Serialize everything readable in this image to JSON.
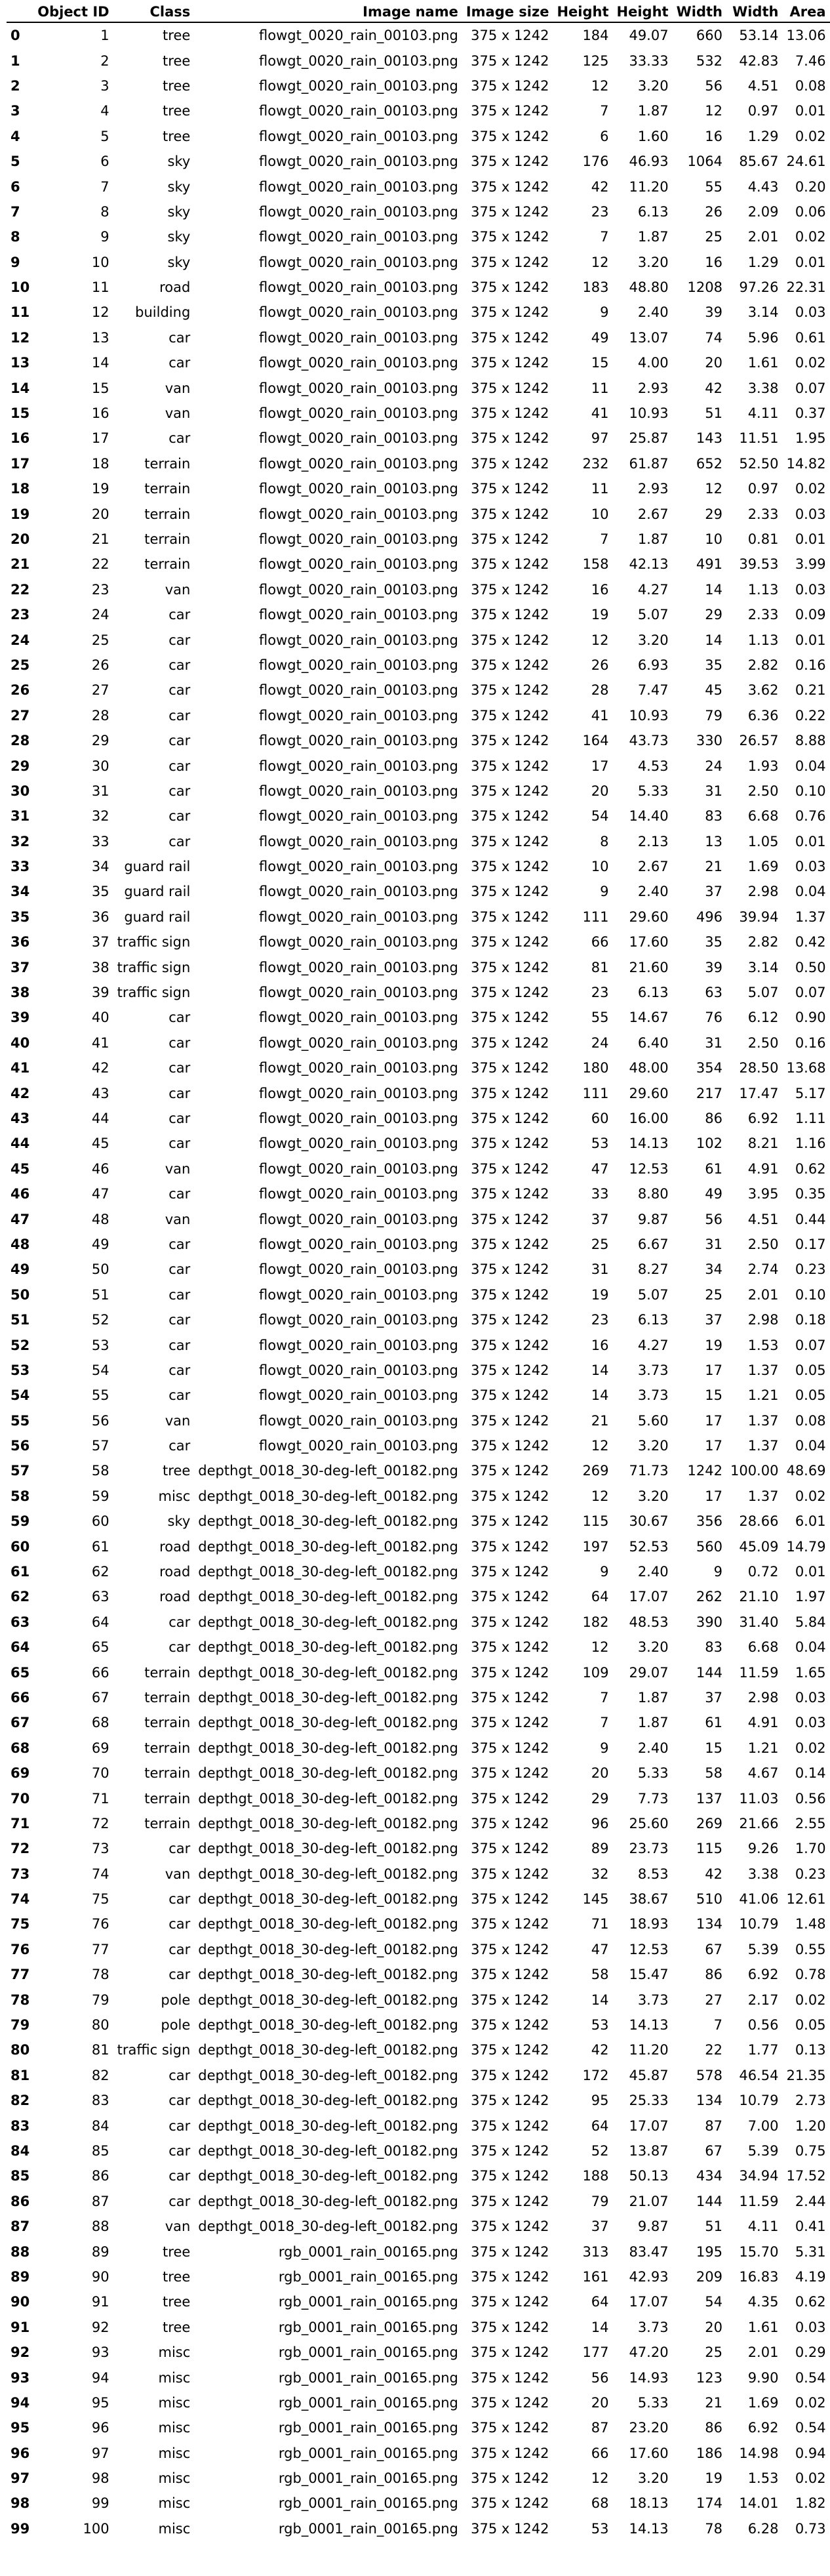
{
  "columns": [
    "",
    "Object ID",
    "Class",
    "Image name",
    "Image size",
    "Height",
    "Height",
    "Width",
    "Width",
    "Area"
  ],
  "rows": [
    [
      0,
      1,
      "tree",
      "flowgt_0020_rain_00103.png",
      "375 x 1242",
      184,
      "49.07",
      660,
      "53.14",
      "13.06"
    ],
    [
      1,
      2,
      "tree",
      "flowgt_0020_rain_00103.png",
      "375 x 1242",
      125,
      "33.33",
      532,
      "42.83",
      "7.46"
    ],
    [
      2,
      3,
      "tree",
      "flowgt_0020_rain_00103.png",
      "375 x 1242",
      12,
      "3.20",
      56,
      "4.51",
      "0.08"
    ],
    [
      3,
      4,
      "tree",
      "flowgt_0020_rain_00103.png",
      "375 x 1242",
      7,
      "1.87",
      12,
      "0.97",
      "0.01"
    ],
    [
      4,
      5,
      "tree",
      "flowgt_0020_rain_00103.png",
      "375 x 1242",
      6,
      "1.60",
      16,
      "1.29",
      "0.02"
    ],
    [
      5,
      6,
      "sky",
      "flowgt_0020_rain_00103.png",
      "375 x 1242",
      176,
      "46.93",
      1064,
      "85.67",
      "24.61"
    ],
    [
      6,
      7,
      "sky",
      "flowgt_0020_rain_00103.png",
      "375 x 1242",
      42,
      "11.20",
      55,
      "4.43",
      "0.20"
    ],
    [
      7,
      8,
      "sky",
      "flowgt_0020_rain_00103.png",
      "375 x 1242",
      23,
      "6.13",
      26,
      "2.09",
      "0.06"
    ],
    [
      8,
      9,
      "sky",
      "flowgt_0020_rain_00103.png",
      "375 x 1242",
      7,
      "1.87",
      25,
      "2.01",
      "0.02"
    ],
    [
      9,
      10,
      "sky",
      "flowgt_0020_rain_00103.png",
      "375 x 1242",
      12,
      "3.20",
      16,
      "1.29",
      "0.01"
    ],
    [
      10,
      11,
      "road",
      "flowgt_0020_rain_00103.png",
      "375 x 1242",
      183,
      "48.80",
      1208,
      "97.26",
      "22.31"
    ],
    [
      11,
      12,
      "building",
      "flowgt_0020_rain_00103.png",
      "375 x 1242",
      9,
      "2.40",
      39,
      "3.14",
      "0.03"
    ],
    [
      12,
      13,
      "car",
      "flowgt_0020_rain_00103.png",
      "375 x 1242",
      49,
      "13.07",
      74,
      "5.96",
      "0.61"
    ],
    [
      13,
      14,
      "car",
      "flowgt_0020_rain_00103.png",
      "375 x 1242",
      15,
      "4.00",
      20,
      "1.61",
      "0.02"
    ],
    [
      14,
      15,
      "van",
      "flowgt_0020_rain_00103.png",
      "375 x 1242",
      11,
      "2.93",
      42,
      "3.38",
      "0.07"
    ],
    [
      15,
      16,
      "van",
      "flowgt_0020_rain_00103.png",
      "375 x 1242",
      41,
      "10.93",
      51,
      "4.11",
      "0.37"
    ],
    [
      16,
      17,
      "car",
      "flowgt_0020_rain_00103.png",
      "375 x 1242",
      97,
      "25.87",
      143,
      "11.51",
      "1.95"
    ],
    [
      17,
      18,
      "terrain",
      "flowgt_0020_rain_00103.png",
      "375 x 1242",
      232,
      "61.87",
      652,
      "52.50",
      "14.82"
    ],
    [
      18,
      19,
      "terrain",
      "flowgt_0020_rain_00103.png",
      "375 x 1242",
      11,
      "2.93",
      12,
      "0.97",
      "0.02"
    ],
    [
      19,
      20,
      "terrain",
      "flowgt_0020_rain_00103.png",
      "375 x 1242",
      10,
      "2.67",
      29,
      "2.33",
      "0.03"
    ],
    [
      20,
      21,
      "terrain",
      "flowgt_0020_rain_00103.png",
      "375 x 1242",
      7,
      "1.87",
      10,
      "0.81",
      "0.01"
    ],
    [
      21,
      22,
      "terrain",
      "flowgt_0020_rain_00103.png",
      "375 x 1242",
      158,
      "42.13",
      491,
      "39.53",
      "3.99"
    ],
    [
      22,
      23,
      "van",
      "flowgt_0020_rain_00103.png",
      "375 x 1242",
      16,
      "4.27",
      14,
      "1.13",
      "0.03"
    ],
    [
      23,
      24,
      "car",
      "flowgt_0020_rain_00103.png",
      "375 x 1242",
      19,
      "5.07",
      29,
      "2.33",
      "0.09"
    ],
    [
      24,
      25,
      "car",
      "flowgt_0020_rain_00103.png",
      "375 x 1242",
      12,
      "3.20",
      14,
      "1.13",
      "0.01"
    ],
    [
      25,
      26,
      "car",
      "flowgt_0020_rain_00103.png",
      "375 x 1242",
      26,
      "6.93",
      35,
      "2.82",
      "0.16"
    ],
    [
      26,
      27,
      "car",
      "flowgt_0020_rain_00103.png",
      "375 x 1242",
      28,
      "7.47",
      45,
      "3.62",
      "0.21"
    ],
    [
      27,
      28,
      "car",
      "flowgt_0020_rain_00103.png",
      "375 x 1242",
      41,
      "10.93",
      79,
      "6.36",
      "0.22"
    ],
    [
      28,
      29,
      "car",
      "flowgt_0020_rain_00103.png",
      "375 x 1242",
      164,
      "43.73",
      330,
      "26.57",
      "8.88"
    ],
    [
      29,
      30,
      "car",
      "flowgt_0020_rain_00103.png",
      "375 x 1242",
      17,
      "4.53",
      24,
      "1.93",
      "0.04"
    ],
    [
      30,
      31,
      "car",
      "flowgt_0020_rain_00103.png",
      "375 x 1242",
      20,
      "5.33",
      31,
      "2.50",
      "0.10"
    ],
    [
      31,
      32,
      "car",
      "flowgt_0020_rain_00103.png",
      "375 x 1242",
      54,
      "14.40",
      83,
      "6.68",
      "0.76"
    ],
    [
      32,
      33,
      "car",
      "flowgt_0020_rain_00103.png",
      "375 x 1242",
      8,
      "2.13",
      13,
      "1.05",
      "0.01"
    ],
    [
      33,
      34,
      "guard rail",
      "flowgt_0020_rain_00103.png",
      "375 x 1242",
      10,
      "2.67",
      21,
      "1.69",
      "0.03"
    ],
    [
      34,
      35,
      "guard rail",
      "flowgt_0020_rain_00103.png",
      "375 x 1242",
      9,
      "2.40",
      37,
      "2.98",
      "0.04"
    ],
    [
      35,
      36,
      "guard rail",
      "flowgt_0020_rain_00103.png",
      "375 x 1242",
      111,
      "29.60",
      496,
      "39.94",
      "1.37"
    ],
    [
      36,
      37,
      "traffic sign",
      "flowgt_0020_rain_00103.png",
      "375 x 1242",
      66,
      "17.60",
      35,
      "2.82",
      "0.42"
    ],
    [
      37,
      38,
      "traffic sign",
      "flowgt_0020_rain_00103.png",
      "375 x 1242",
      81,
      "21.60",
      39,
      "3.14",
      "0.50"
    ],
    [
      38,
      39,
      "traffic sign",
      "flowgt_0020_rain_00103.png",
      "375 x 1242",
      23,
      "6.13",
      63,
      "5.07",
      "0.07"
    ],
    [
      39,
      40,
      "car",
      "flowgt_0020_rain_00103.png",
      "375 x 1242",
      55,
      "14.67",
      76,
      "6.12",
      "0.90"
    ],
    [
      40,
      41,
      "car",
      "flowgt_0020_rain_00103.png",
      "375 x 1242",
      24,
      "6.40",
      31,
      "2.50",
      "0.16"
    ],
    [
      41,
      42,
      "car",
      "flowgt_0020_rain_00103.png",
      "375 x 1242",
      180,
      "48.00",
      354,
      "28.50",
      "13.68"
    ],
    [
      42,
      43,
      "car",
      "flowgt_0020_rain_00103.png",
      "375 x 1242",
      111,
      "29.60",
      217,
      "17.47",
      "5.17"
    ],
    [
      43,
      44,
      "car",
      "flowgt_0020_rain_00103.png",
      "375 x 1242",
      60,
      "16.00",
      86,
      "6.92",
      "1.11"
    ],
    [
      44,
      45,
      "car",
      "flowgt_0020_rain_00103.png",
      "375 x 1242",
      53,
      "14.13",
      102,
      "8.21",
      "1.16"
    ],
    [
      45,
      46,
      "van",
      "flowgt_0020_rain_00103.png",
      "375 x 1242",
      47,
      "12.53",
      61,
      "4.91",
      "0.62"
    ],
    [
      46,
      47,
      "car",
      "flowgt_0020_rain_00103.png",
      "375 x 1242",
      33,
      "8.80",
      49,
      "3.95",
      "0.35"
    ],
    [
      47,
      48,
      "van",
      "flowgt_0020_rain_00103.png",
      "375 x 1242",
      37,
      "9.87",
      56,
      "4.51",
      "0.44"
    ],
    [
      48,
      49,
      "car",
      "flowgt_0020_rain_00103.png",
      "375 x 1242",
      25,
      "6.67",
      31,
      "2.50",
      "0.17"
    ],
    [
      49,
      50,
      "car",
      "flowgt_0020_rain_00103.png",
      "375 x 1242",
      31,
      "8.27",
      34,
      "2.74",
      "0.23"
    ],
    [
      50,
      51,
      "car",
      "flowgt_0020_rain_00103.png",
      "375 x 1242",
      19,
      "5.07",
      25,
      "2.01",
      "0.10"
    ],
    [
      51,
      52,
      "car",
      "flowgt_0020_rain_00103.png",
      "375 x 1242",
      23,
      "6.13",
      37,
      "2.98",
      "0.18"
    ],
    [
      52,
      53,
      "car",
      "flowgt_0020_rain_00103.png",
      "375 x 1242",
      16,
      "4.27",
      19,
      "1.53",
      "0.07"
    ],
    [
      53,
      54,
      "car",
      "flowgt_0020_rain_00103.png",
      "375 x 1242",
      14,
      "3.73",
      17,
      "1.37",
      "0.05"
    ],
    [
      54,
      55,
      "car",
      "flowgt_0020_rain_00103.png",
      "375 x 1242",
      14,
      "3.73",
      15,
      "1.21",
      "0.05"
    ],
    [
      55,
      56,
      "van",
      "flowgt_0020_rain_00103.png",
      "375 x 1242",
      21,
      "5.60",
      17,
      "1.37",
      "0.08"
    ],
    [
      56,
      57,
      "car",
      "flowgt_0020_rain_00103.png",
      "375 x 1242",
      12,
      "3.20",
      17,
      "1.37",
      "0.04"
    ],
    [
      57,
      58,
      "tree",
      "depthgt_0018_30-deg-left_00182.png",
      "375 x 1242",
      269,
      "71.73",
      1242,
      "100.00",
      "48.69"
    ],
    [
      58,
      59,
      "misc",
      "depthgt_0018_30-deg-left_00182.png",
      "375 x 1242",
      12,
      "3.20",
      17,
      "1.37",
      "0.02"
    ],
    [
      59,
      60,
      "sky",
      "depthgt_0018_30-deg-left_00182.png",
      "375 x 1242",
      115,
      "30.67",
      356,
      "28.66",
      "6.01"
    ],
    [
      60,
      61,
      "road",
      "depthgt_0018_30-deg-left_00182.png",
      "375 x 1242",
      197,
      "52.53",
      560,
      "45.09",
      "14.79"
    ],
    [
      61,
      62,
      "road",
      "depthgt_0018_30-deg-left_00182.png",
      "375 x 1242",
      9,
      "2.40",
      9,
      "0.72",
      "0.01"
    ],
    [
      62,
      63,
      "road",
      "depthgt_0018_30-deg-left_00182.png",
      "375 x 1242",
      64,
      "17.07",
      262,
      "21.10",
      "1.97"
    ],
    [
      63,
      64,
      "car",
      "depthgt_0018_30-deg-left_00182.png",
      "375 x 1242",
      182,
      "48.53",
      390,
      "31.40",
      "5.84"
    ],
    [
      64,
      65,
      "car",
      "depthgt_0018_30-deg-left_00182.png",
      "375 x 1242",
      12,
      "3.20",
      83,
      "6.68",
      "0.04"
    ],
    [
      65,
      66,
      "terrain",
      "depthgt_0018_30-deg-left_00182.png",
      "375 x 1242",
      109,
      "29.07",
      144,
      "11.59",
      "1.65"
    ],
    [
      66,
      67,
      "terrain",
      "depthgt_0018_30-deg-left_00182.png",
      "375 x 1242",
      7,
      "1.87",
      37,
      "2.98",
      "0.03"
    ],
    [
      67,
      68,
      "terrain",
      "depthgt_0018_30-deg-left_00182.png",
      "375 x 1242",
      7,
      "1.87",
      61,
      "4.91",
      "0.03"
    ],
    [
      68,
      69,
      "terrain",
      "depthgt_0018_30-deg-left_00182.png",
      "375 x 1242",
      9,
      "2.40",
      15,
      "1.21",
      "0.02"
    ],
    [
      69,
      70,
      "terrain",
      "depthgt_0018_30-deg-left_00182.png",
      "375 x 1242",
      20,
      "5.33",
      58,
      "4.67",
      "0.14"
    ],
    [
      70,
      71,
      "terrain",
      "depthgt_0018_30-deg-left_00182.png",
      "375 x 1242",
      29,
      "7.73",
      137,
      "11.03",
      "0.56"
    ],
    [
      71,
      72,
      "terrain",
      "depthgt_0018_30-deg-left_00182.png",
      "375 x 1242",
      96,
      "25.60",
      269,
      "21.66",
      "2.55"
    ],
    [
      72,
      73,
      "car",
      "depthgt_0018_30-deg-left_00182.png",
      "375 x 1242",
      89,
      "23.73",
      115,
      "9.26",
      "1.70"
    ],
    [
      73,
      74,
      "van",
      "depthgt_0018_30-deg-left_00182.png",
      "375 x 1242",
      32,
      "8.53",
      42,
      "3.38",
      "0.23"
    ],
    [
      74,
      75,
      "car",
      "depthgt_0018_30-deg-left_00182.png",
      "375 x 1242",
      145,
      "38.67",
      510,
      "41.06",
      "12.61"
    ],
    [
      75,
      76,
      "car",
      "depthgt_0018_30-deg-left_00182.png",
      "375 x 1242",
      71,
      "18.93",
      134,
      "10.79",
      "1.48"
    ],
    [
      76,
      77,
      "car",
      "depthgt_0018_30-deg-left_00182.png",
      "375 x 1242",
      47,
      "12.53",
      67,
      "5.39",
      "0.55"
    ],
    [
      77,
      78,
      "car",
      "depthgt_0018_30-deg-left_00182.png",
      "375 x 1242",
      58,
      "15.47",
      86,
      "6.92",
      "0.78"
    ],
    [
      78,
      79,
      "pole",
      "depthgt_0018_30-deg-left_00182.png",
      "375 x 1242",
      14,
      "3.73",
      27,
      "2.17",
      "0.02"
    ],
    [
      79,
      80,
      "pole",
      "depthgt_0018_30-deg-left_00182.png",
      "375 x 1242",
      53,
      "14.13",
      7,
      "0.56",
      "0.05"
    ],
    [
      80,
      81,
      "traffic sign",
      "depthgt_0018_30-deg-left_00182.png",
      "375 x 1242",
      42,
      "11.20",
      22,
      "1.77",
      "0.13"
    ],
    [
      81,
      82,
      "car",
      "depthgt_0018_30-deg-left_00182.png",
      "375 x 1242",
      172,
      "45.87",
      578,
      "46.54",
      "21.35"
    ],
    [
      82,
      83,
      "car",
      "depthgt_0018_30-deg-left_00182.png",
      "375 x 1242",
      95,
      "25.33",
      134,
      "10.79",
      "2.73"
    ],
    [
      83,
      84,
      "car",
      "depthgt_0018_30-deg-left_00182.png",
      "375 x 1242",
      64,
      "17.07",
      87,
      "7.00",
      "1.20"
    ],
    [
      84,
      85,
      "car",
      "depthgt_0018_30-deg-left_00182.png",
      "375 x 1242",
      52,
      "13.87",
      67,
      "5.39",
      "0.75"
    ],
    [
      85,
      86,
      "car",
      "depthgt_0018_30-deg-left_00182.png",
      "375 x 1242",
      188,
      "50.13",
      434,
      "34.94",
      "17.52"
    ],
    [
      86,
      87,
      "car",
      "depthgt_0018_30-deg-left_00182.png",
      "375 x 1242",
      79,
      "21.07",
      144,
      "11.59",
      "2.44"
    ],
    [
      87,
      88,
      "van",
      "depthgt_0018_30-deg-left_00182.png",
      "375 x 1242",
      37,
      "9.87",
      51,
      "4.11",
      "0.41"
    ],
    [
      88,
      89,
      "tree",
      "rgb_0001_rain_00165.png",
      "375 x 1242",
      313,
      "83.47",
      195,
      "15.70",
      "5.31"
    ],
    [
      89,
      90,
      "tree",
      "rgb_0001_rain_00165.png",
      "375 x 1242",
      161,
      "42.93",
      209,
      "16.83",
      "4.19"
    ],
    [
      90,
      91,
      "tree",
      "rgb_0001_rain_00165.png",
      "375 x 1242",
      64,
      "17.07",
      54,
      "4.35",
      "0.62"
    ],
    [
      91,
      92,
      "tree",
      "rgb_0001_rain_00165.png",
      "375 x 1242",
      14,
      "3.73",
      20,
      "1.61",
      "0.03"
    ],
    [
      92,
      93,
      "misc",
      "rgb_0001_rain_00165.png",
      "375 x 1242",
      177,
      "47.20",
      25,
      "2.01",
      "0.29"
    ],
    [
      93,
      94,
      "misc",
      "rgb_0001_rain_00165.png",
      "375 x 1242",
      56,
      "14.93",
      123,
      "9.90",
      "0.54"
    ],
    [
      94,
      95,
      "misc",
      "rgb_0001_rain_00165.png",
      "375 x 1242",
      20,
      "5.33",
      21,
      "1.69",
      "0.02"
    ],
    [
      95,
      96,
      "misc",
      "rgb_0001_rain_00165.png",
      "375 x 1242",
      87,
      "23.20",
      86,
      "6.92",
      "0.54"
    ],
    [
      96,
      97,
      "misc",
      "rgb_0001_rain_00165.png",
      "375 x 1242",
      66,
      "17.60",
      186,
      "14.98",
      "0.94"
    ],
    [
      97,
      98,
      "misc",
      "rgb_0001_rain_00165.png",
      "375 x 1242",
      12,
      "3.20",
      19,
      "1.53",
      "0.02"
    ],
    [
      98,
      99,
      "misc",
      "rgb_0001_rain_00165.png",
      "375 x 1242",
      68,
      "18.13",
      174,
      "14.01",
      "1.82"
    ],
    [
      99,
      100,
      "misc",
      "rgb_0001_rain_00165.png",
      "375 x 1242",
      53,
      "14.13",
      78,
      "6.28",
      "0.73"
    ]
  ]
}
